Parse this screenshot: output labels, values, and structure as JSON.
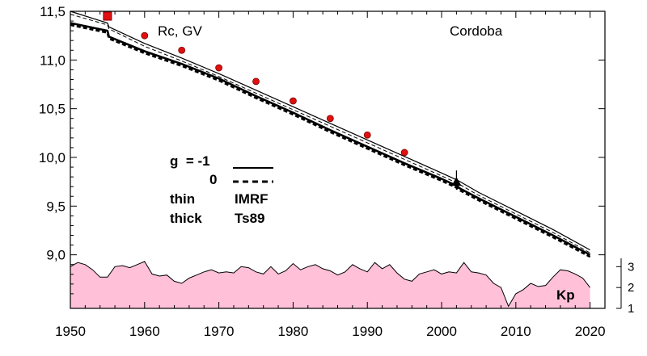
{
  "chart_data": {
    "type": "line",
    "title": "",
    "xlabel": "",
    "ylabel": "",
    "xlim": [
      1950,
      2022
    ],
    "ylim": [
      8.45,
      11.5
    ],
    "x_ticks": [
      "1950",
      "1960",
      "1970",
      "1980",
      "1990",
      "2000",
      "2010",
      "2020"
    ],
    "y_ticks": [
      "9,0",
      "9,5",
      "10,0",
      "10,5",
      "11,0",
      "11,5"
    ],
    "grid": false,
    "colors": {
      "kp_fill": "#ffc0d8",
      "points": "#e01010",
      "lines": "#000000"
    },
    "annotations": {
      "rc_gv": "Rc, GV",
      "station": "Cordoba",
      "g_label": "g  = -1",
      "zero_label": "0",
      "thin": "thin",
      "thick": "thick",
      "imrf": "IMRF",
      "ts89": "Ts89",
      "kp": "Kp"
    },
    "kp_axis": {
      "ticks": [
        "1",
        "2",
        "3"
      ],
      "range": [
        1,
        3.4
      ]
    },
    "series": [
      {
        "x": [
          1950,
          1955,
          1955.2,
          1960,
          1965,
          1970,
          1975,
          1980,
          1985,
          1990,
          1995,
          2000,
          2002,
          2002.5,
          2005,
          2010,
          2015,
          2020
        ],
        "values": [
          11.5,
          11.38,
          11.34,
          11.17,
          11.02,
          10.86,
          10.69,
          10.52,
          10.35,
          10.18,
          10.01,
          9.84,
          9.77,
          9.75,
          9.64,
          9.45,
          9.26,
          9.05
        ]
      },
      {
        "x": [
          1950,
          1955,
          1955.2,
          1960,
          1965,
          1970,
          1975,
          1980,
          1985,
          1990,
          1995,
          2000,
          2002,
          2002.5,
          2005,
          2010,
          2015,
          2020
        ],
        "values": [
          11.38,
          11.3,
          11.24,
          11.09,
          10.96,
          10.81,
          10.63,
          10.46,
          10.28,
          10.11,
          9.94,
          9.78,
          9.71,
          9.68,
          9.58,
          9.39,
          9.2,
          9.0
        ]
      },
      {
        "x": [
          1950,
          1955,
          1955.2,
          1960,
          1965,
          1970,
          1975,
          1980,
          1985,
          1990,
          1995,
          2000,
          2002,
          2002.5,
          2005,
          2010,
          2015,
          2020
        ],
        "values": [
          11.47,
          11.36,
          11.32,
          11.14,
          10.99,
          10.83,
          10.66,
          10.49,
          10.32,
          10.15,
          9.98,
          9.81,
          9.74,
          9.72,
          9.61,
          9.42,
          9.23,
          9.02
        ]
      },
      {
        "x": [
          1950,
          1955,
          1955.2,
          1960,
          1965,
          1970,
          1975,
          1980,
          1985,
          1990,
          1995,
          2000,
          2002,
          2002.5,
          2005,
          2010,
          2015,
          2020
        ],
        "values": [
          11.36,
          11.28,
          11.22,
          11.07,
          10.94,
          10.79,
          10.61,
          10.44,
          10.26,
          10.09,
          9.92,
          9.76,
          9.69,
          9.66,
          9.56,
          9.37,
          9.18,
          8.98
        ]
      },
      {
        "type": "scatter",
        "x": [
          1955,
          1960,
          1965,
          1970,
          1975,
          1980,
          1985,
          1990,
          1995
        ],
        "values": [
          11.45,
          11.25,
          11.1,
          10.92,
          10.78,
          10.58,
          10.4,
          10.23,
          10.05
        ]
      },
      {
        "type": "area",
        "x": [
          1950,
          1951,
          1952,
          1953,
          1954,
          1955,
          1956,
          1957,
          1958,
          1959,
          1960,
          1961,
          1962,
          1963,
          1964,
          1965,
          1966,
          1967,
          1968,
          1969,
          1970,
          1971,
          1972,
          1973,
          1974,
          1975,
          1976,
          1977,
          1978,
          1979,
          1980,
          1981,
          1982,
          1983,
          1984,
          1985,
          1986,
          1987,
          1988,
          1989,
          1990,
          1991,
          1992,
          1993,
          1994,
          1995,
          1996,
          1997,
          1998,
          1999,
          2000,
          2001,
          2002,
          2003,
          2004,
          2005,
          2006,
          2007,
          2008,
          2009,
          2010,
          2011,
          2012,
          2013,
          2014,
          2015,
          2016,
          2017,
          2018,
          2019,
          2020
        ],
        "values": [
          3.0,
          3.2,
          3.1,
          2.85,
          2.5,
          2.5,
          3.0,
          3.05,
          2.95,
          3.1,
          3.25,
          2.65,
          2.55,
          2.6,
          2.3,
          2.2,
          2.45,
          2.6,
          2.75,
          2.85,
          2.7,
          2.75,
          2.7,
          3.0,
          2.95,
          2.75,
          2.65,
          3.0,
          2.65,
          2.8,
          3.15,
          2.85,
          3.0,
          3.1,
          2.9,
          2.8,
          2.6,
          2.75,
          3.1,
          2.9,
          2.75,
          3.2,
          2.9,
          3.1,
          2.7,
          2.4,
          2.3,
          2.65,
          2.75,
          2.85,
          2.65,
          2.75,
          2.7,
          3.2,
          2.75,
          2.7,
          2.6,
          2.2,
          2.0,
          1.1,
          1.7,
          1.9,
          2.2,
          2.05,
          2.1,
          2.5,
          2.85,
          2.8,
          2.65,
          2.45,
          2.0
        ]
      }
    ]
  }
}
